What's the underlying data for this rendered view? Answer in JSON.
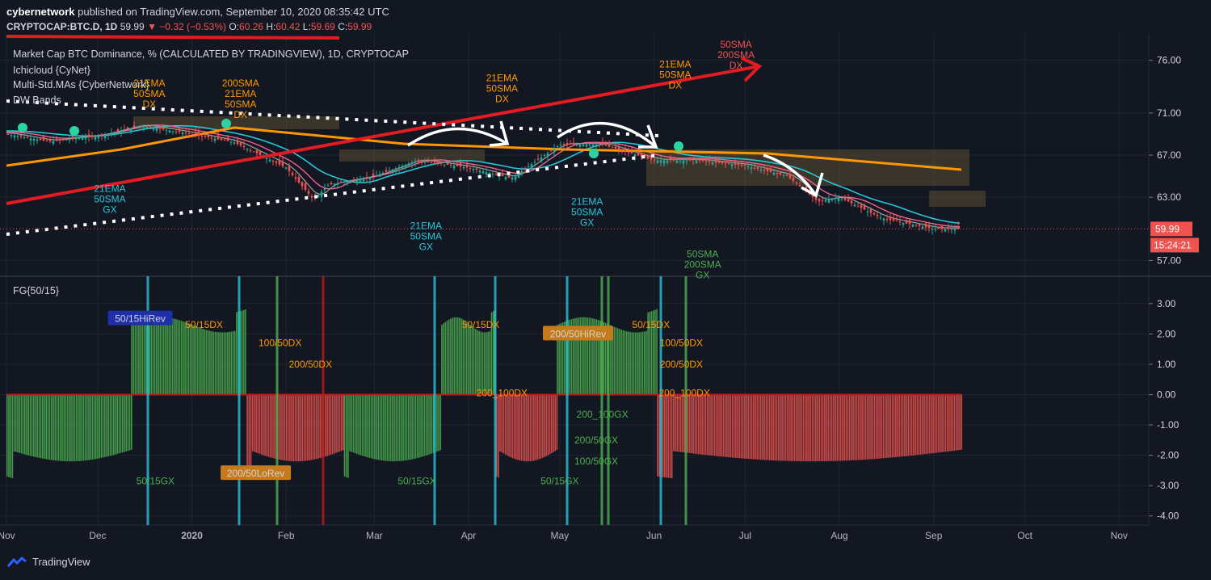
{
  "header": {
    "author": "cybernetwork",
    "published_text": "published on TradingView.com, September 10, 2020 08:35:42 UTC",
    "symbol": "CRYPTOCAP:BTC.D, 1D",
    "last": "59.99",
    "change": "−0.32 (−0.53%)",
    "o_label": "O:",
    "o": "60.26",
    "h_label": "H:",
    "h": "60.42",
    "l_label": "L:",
    "l": "59.69",
    "c_label": "C:",
    "c": "59.99"
  },
  "legend": {
    "title": "Market Cap BTC Dominance, % (CALCULATED BY TRADINGVIEW), 1D, CRYPTOCAP",
    "ind1": "Ichicloud {CyNet}",
    "ind2": "Multi-Std.MAs {CyberNetwork}",
    "ind3": "DW Bands",
    "osc": "FG{50/15}"
  },
  "price_badge": "59.99",
  "time_badge": "15:24:21",
  "footer": {
    "brand": "TradingView"
  },
  "colors": {
    "bg": "#131722",
    "up": "#26a69a",
    "down": "#ef5350",
    "orange": "#ff9800",
    "red_line": "#e31b23",
    "teal": "#26c6da",
    "green": "#4caf50"
  },
  "chart_data": [
    {
      "type": "line",
      "title": "Market Cap BTC Dominance, % (CALCULATED BY TRADINGVIEW), 1D, CRYPTOCAP",
      "x_ticks": [
        "Nov",
        "Dec",
        "2020",
        "Feb",
        "Mar",
        "Apr",
        "May",
        "Jun",
        "Jul",
        "Aug",
        "Sep",
        "Oct",
        "Nov"
      ],
      "y_ticks": [
        "76.00",
        "71.00",
        "67.00",
        "63.00",
        "57.00"
      ],
      "ylim": [
        55.5,
        78.5
      ],
      "close_series": {
        "x": [
          "2019-11-01",
          "2019-11-15",
          "2019-12-01",
          "2019-12-15",
          "2020-01-01",
          "2020-01-15",
          "2020-02-01",
          "2020-02-10",
          "2020-02-15",
          "2020-03-01",
          "2020-03-15",
          "2020-04-01",
          "2020-04-15",
          "2020-05-01",
          "2020-05-15",
          "2020-06-01",
          "2020-06-15",
          "2020-07-01",
          "2020-07-15",
          "2020-07-25",
          "2020-08-01",
          "2020-08-15",
          "2020-09-01",
          "2020-09-10"
        ],
        "y": [
          69.0,
          68.3,
          68.8,
          69.8,
          69.0,
          68.2,
          65.8,
          62.8,
          64.2,
          65.0,
          66.5,
          65.8,
          64.8,
          68.0,
          68.0,
          66.5,
          66.5,
          66.0,
          65.0,
          62.6,
          63.0,
          61.0,
          60.0,
          59.99
        ]
      },
      "annotations": [
        {
          "text": "21EMA\n50SMA\nDX",
          "x": "2019-12-18",
          "y": 73.5,
          "color": "#ff9800"
        },
        {
          "text": "200SMA\n21EMA\n50SMA\nDX",
          "x": "2020-01-17",
          "y": 73.5,
          "color": "#ff9800"
        },
        {
          "text": "21EMA\n50SMA\nGX",
          "x": "2019-12-05",
          "y": 63.5,
          "color": "#26c6da"
        },
        {
          "text": "21EMA\n50SMA\nGX",
          "x": "2020-03-18",
          "y": 60.0,
          "color": "#26c6da"
        },
        {
          "text": "21EMA\n50SMA\nDX",
          "x": "2020-04-12",
          "y": 74.0,
          "color": "#ff9800"
        },
        {
          "text": "21EMA\n50SMA\nGX",
          "x": "2020-05-10",
          "y": 62.3,
          "color": "#26c6da"
        },
        {
          "text": "21EMA\n50SMA\nDX",
          "x": "2020-06-08",
          "y": 75.3,
          "color": "#ff9800"
        },
        {
          "text": "50SMA\n200SMA\nDX",
          "x": "2020-06-28",
          "y": 77.2,
          "color": "#ef5350"
        },
        {
          "text": "50SMA\n200SMA\nGX",
          "x": "2020-06-17",
          "y": 57.3,
          "color": "#4caf50"
        }
      ]
    },
    {
      "type": "bar",
      "title": "FG{50/15}",
      "y_ticks": [
        "3.00",
        "2.00",
        "1.00",
        "0.00",
        "-1.00",
        "-2.00",
        "-3.00",
        "-4.00"
      ],
      "ylim": [
        -4.3,
        3.9
      ],
      "segments": [
        {
          "from": "2019-11-01",
          "to": "2019-12-12",
          "sign": "neg",
          "color": "#4caf50"
        },
        {
          "from": "2019-12-12",
          "to": "2020-01-19",
          "sign": "pos",
          "color": "#4caf50"
        },
        {
          "from": "2020-01-19",
          "to": "2020-02-20",
          "sign": "neg",
          "color": "#ef5350"
        },
        {
          "from": "2020-02-20",
          "to": "2020-03-23",
          "sign": "neg",
          "color": "#4caf50"
        },
        {
          "from": "2020-03-23",
          "to": "2020-04-10",
          "sign": "pos",
          "color": "#4caf50"
        },
        {
          "from": "2020-04-10",
          "to": "2020-04-30",
          "sign": "neg",
          "color": "#ef5350"
        },
        {
          "from": "2020-04-30",
          "to": "2020-06-02",
          "sign": "pos",
          "color": "#4caf50"
        },
        {
          "from": "2020-06-02",
          "to": "2020-09-10",
          "sign": "neg",
          "color": "#ef5350"
        }
      ],
      "labels": [
        {
          "text": "50/15HiRev",
          "x": "2019-12-15",
          "y": 2.5,
          "box": "#1e2fa8",
          "color": "#d1d4dc"
        },
        {
          "text": "50/15DX",
          "x": "2020-01-05",
          "y": 2.3,
          "color": "#ff9800"
        },
        {
          "text": "100/50DX",
          "x": "2020-01-30",
          "y": 1.7,
          "color": "#ff9800"
        },
        {
          "text": "200/50DX",
          "x": "2020-02-09",
          "y": 1.0,
          "color": "#ff9800"
        },
        {
          "text": "50/15DX",
          "x": "2020-04-05",
          "y": 2.3,
          "color": "#ff9800"
        },
        {
          "text": "200_100DX",
          "x": "2020-04-12",
          "y": 0.05,
          "color": "#ff9800"
        },
        {
          "text": "200/50HiRev",
          "x": "2020-05-07",
          "y": 2.0,
          "box": "#c77a1a",
          "color": "#d1d4dc"
        },
        {
          "text": "50/15DX",
          "x": "2020-05-31",
          "y": 2.3,
          "color": "#ff9800"
        },
        {
          "text": "100/50DX",
          "x": "2020-06-10",
          "y": 1.7,
          "color": "#ff9800"
        },
        {
          "text": "200/50DX",
          "x": "2020-06-10",
          "y": 1.0,
          "color": "#ff9800"
        },
        {
          "text": "200_100DX",
          "x": "2020-06-11",
          "y": 0.05,
          "color": "#ff9800"
        },
        {
          "text": "200_100GX",
          "x": "2020-05-15",
          "y": -0.65,
          "color": "#4caf50"
        },
        {
          "text": "200/50GX",
          "x": "2020-05-13",
          "y": -1.5,
          "color": "#4caf50"
        },
        {
          "text": "100/50GX",
          "x": "2020-05-13",
          "y": -2.2,
          "color": "#4caf50"
        },
        {
          "text": "50/15GX",
          "x": "2020-05-01",
          "y": -2.85,
          "color": "#4caf50"
        },
        {
          "text": "50/15GX",
          "x": "2020-03-15",
          "y": -2.85,
          "color": "#4caf50"
        },
        {
          "text": "50/15GX",
          "x": "2019-12-20",
          "y": -2.85,
          "color": "#4caf50"
        },
        {
          "text": "200/50LoRev",
          "x": "2020-01-22",
          "y": -2.6,
          "box": "#c77a1a",
          "color": "#d1d4dc"
        }
      ]
    }
  ]
}
